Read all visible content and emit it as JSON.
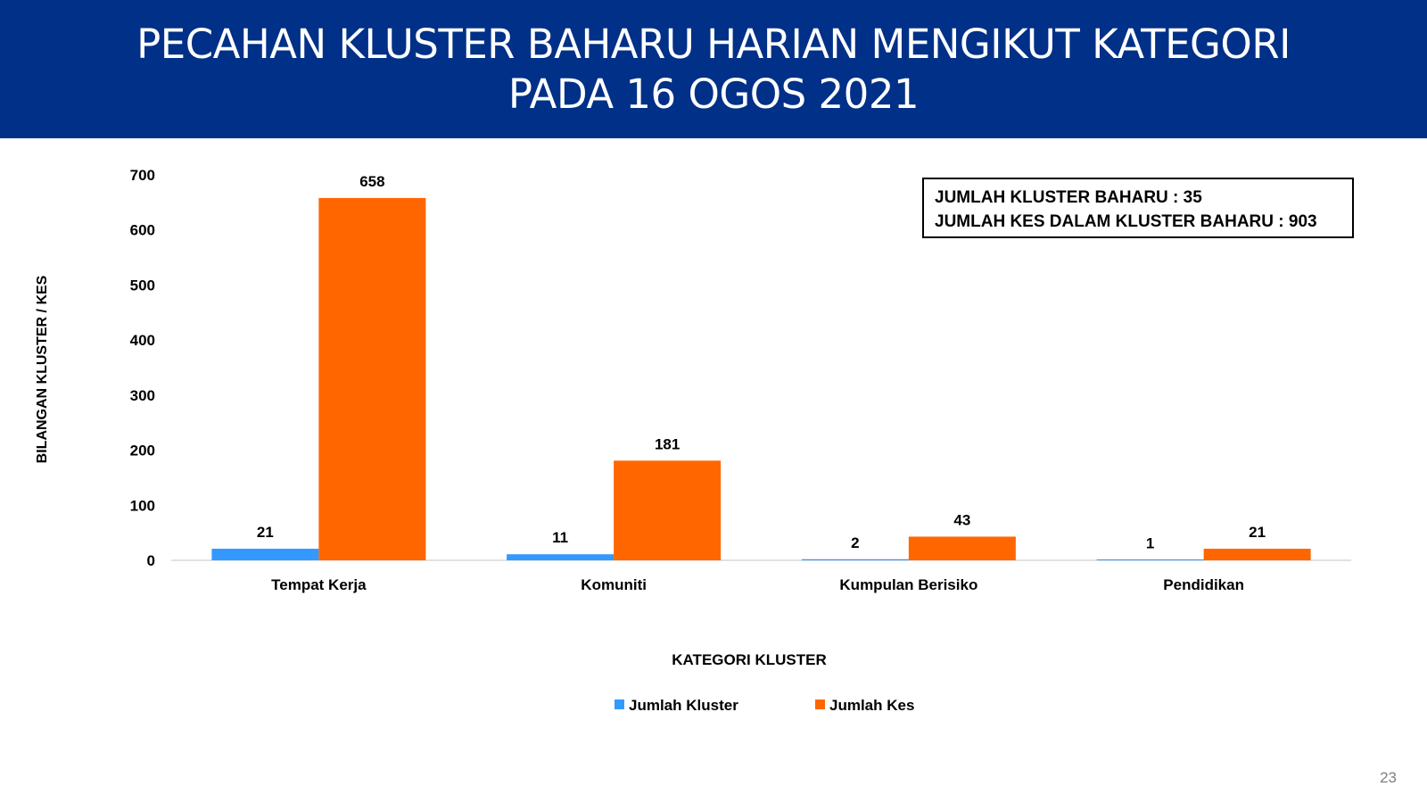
{
  "header": {
    "title_line1": "PECAHAN KLUSTER BAHARU HARIAN MENGIKUT KATEGORI",
    "title_line2": "PADA 16 OGOS 2021"
  },
  "summary": {
    "line1": "JUMLAH KLUSTER BAHARU : 35",
    "line2": "JUMLAH KES DALAM KLUSTER BAHARU : 903"
  },
  "page_number": "23",
  "chart_data": {
    "type": "bar",
    "categories": [
      "Tempat Kerja",
      "Komuniti",
      "Kumpulan Berisiko",
      "Pendidikan"
    ],
    "series": [
      {
        "name": "Jumlah Kluster",
        "values": [
          21,
          11,
          2,
          1
        ],
        "color": "#3399ff"
      },
      {
        "name": "Jumlah Kes",
        "values": [
          658,
          181,
          43,
          21
        ],
        "color": "#ff6600"
      }
    ],
    "xlabel": "KATEGORI KLUSTER",
    "ylabel": "BILANGAN KLUSTER / KES",
    "ylim": [
      0,
      700
    ],
    "yticks": [
      0,
      100,
      200,
      300,
      400,
      500,
      600,
      700
    ],
    "grid": false,
    "legend_position": "bottom"
  }
}
